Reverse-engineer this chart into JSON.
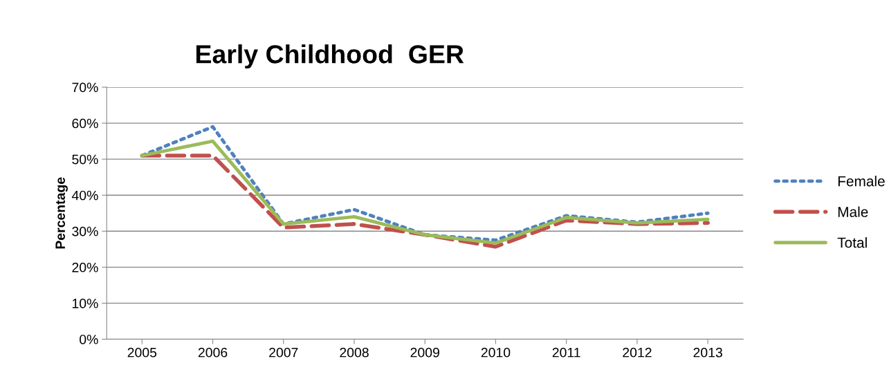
{
  "chart_data": {
    "type": "line",
    "title": "Early Childhood  GER",
    "ylabel": "Percentage",
    "categories": [
      "2005",
      "2006",
      "2007",
      "2008",
      "2009",
      "2010",
      "2011",
      "2012",
      "2013"
    ],
    "series": [
      {
        "name": "Female",
        "color": "#4f81bd",
        "line_style": "dotted",
        "values": [
          51,
          59,
          32,
          36,
          29,
          27.5,
          34.3,
          32.5,
          35
        ]
      },
      {
        "name": "Male",
        "color": "#c0504d",
        "line_style": "dashed",
        "values": [
          51,
          51,
          31,
          32,
          29,
          25.7,
          33,
          32,
          32.3
        ]
      },
      {
        "name": "Total",
        "color": "#9bbb59",
        "line_style": "solid",
        "values": [
          51,
          55,
          32,
          34,
          29,
          26.7,
          33.8,
          32.3,
          33.3
        ]
      }
    ],
    "ylim": [
      0,
      70
    ],
    "yticks": [
      {
        "value": 0,
        "label": "0%"
      },
      {
        "value": 10,
        "label": "10%"
      },
      {
        "value": 20,
        "label": "20%"
      },
      {
        "value": 30,
        "label": "30%"
      },
      {
        "value": 40,
        "label": "40%"
      },
      {
        "value": 50,
        "label": "50%"
      },
      {
        "value": 60,
        "label": "60%"
      },
      {
        "value": 70,
        "label": "70%"
      }
    ],
    "grid": "y",
    "legend": "right",
    "marker": "none"
  }
}
